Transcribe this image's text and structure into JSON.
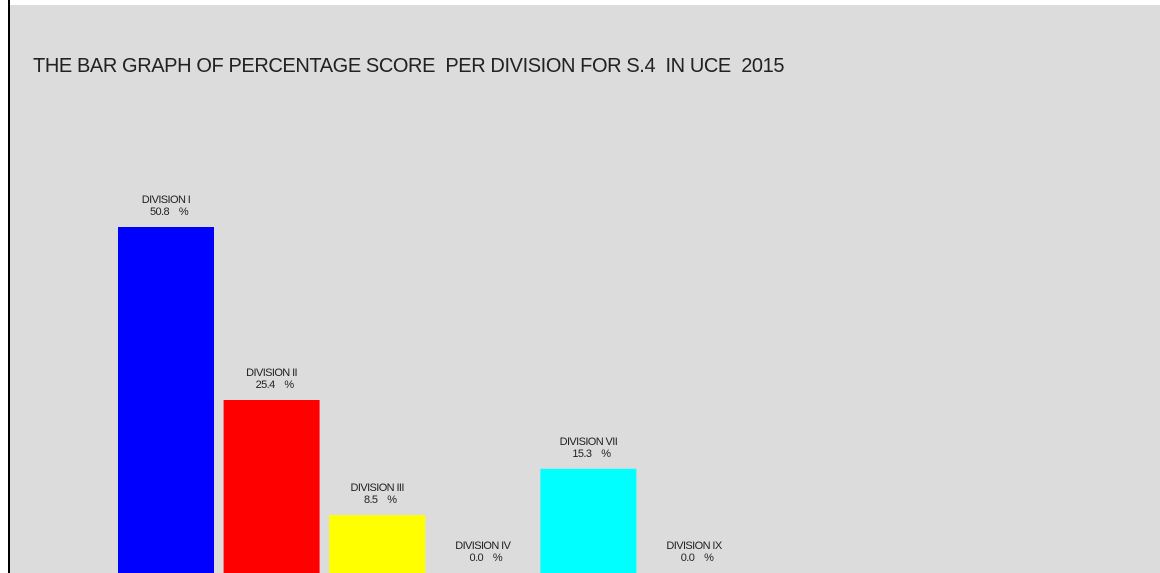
{
  "chart_data": {
    "type": "bar",
    "title": "THE BAR GRAPH OF PERCENTAGE SCORE  PER DIVISION FOR S.4  IN UCE  2015",
    "categories": [
      "DIVISION I",
      "DIVISION II",
      "DIVISION III",
      "DIVISION IV",
      "DIVISION VII",
      "DIVISION IX"
    ],
    "values": [
      50.8,
      25.4,
      8.5,
      0.0,
      15.3,
      0.0
    ],
    "value_labels": [
      "50.8    %",
      "25.4    %",
      "8.5    %",
      "0.0    %",
      "15.3    %",
      "0.0    %"
    ],
    "colors": [
      "#0000ff",
      "#ff0000",
      "#ffff00",
      null,
      "#00ffff",
      null
    ]
  }
}
